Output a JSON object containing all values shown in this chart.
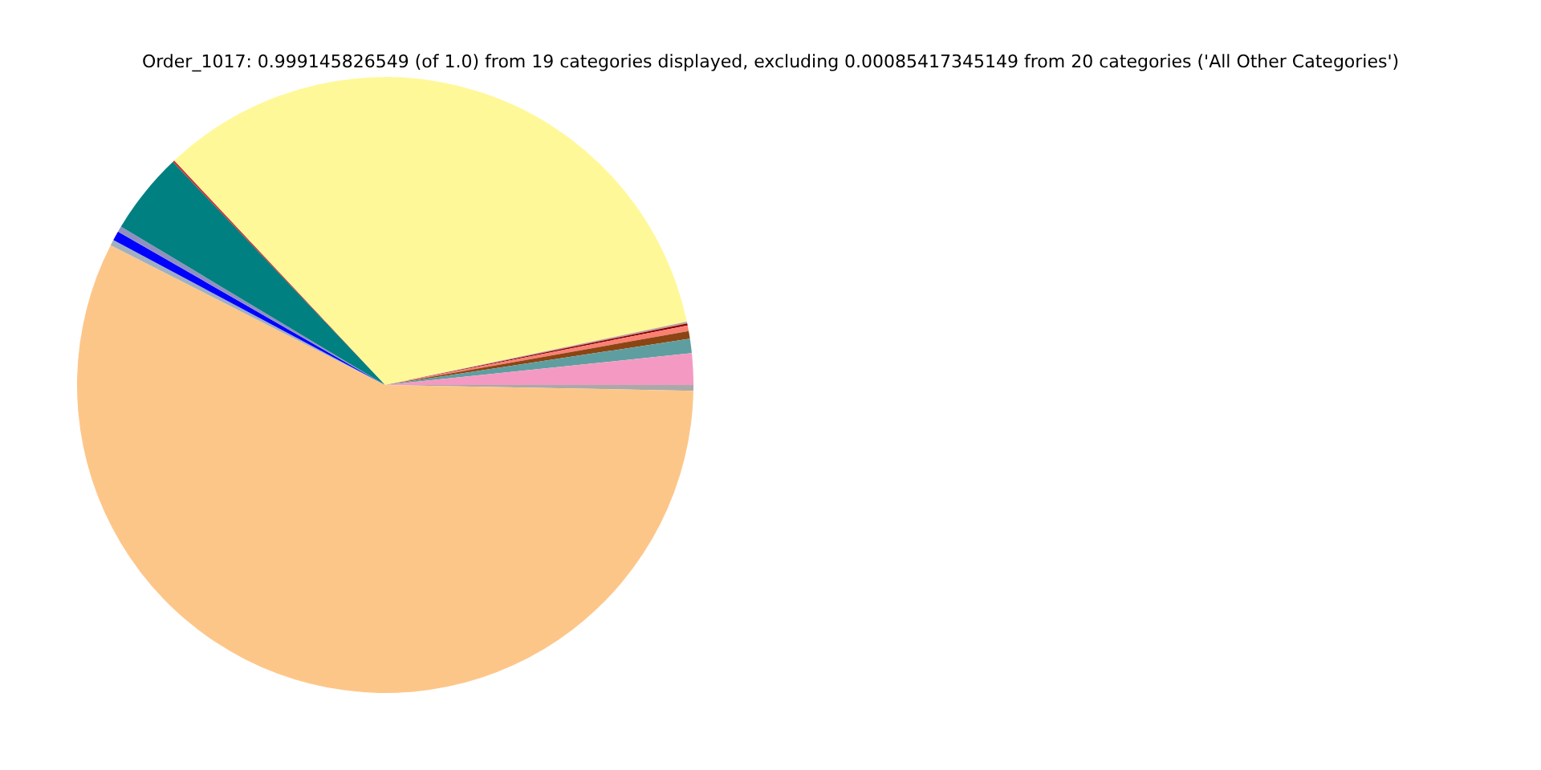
{
  "chart_data": {
    "type": "pie",
    "title": "Order_1017: 0.999145826549 (of 1.0) from 19 categories displayed, excluding 0.00085417345149 from 20 categories ('All Other Categories')",
    "categories": [
      null,
      null,
      null,
      null,
      null,
      null,
      null,
      null,
      null,
      null,
      null,
      null,
      null,
      null
    ],
    "values": [
      0.3,
      57.2,
      0.3,
      0.5,
      0.3,
      4.3,
      0.1,
      33.7,
      0.1,
      0.1,
      0.3,
      0.4,
      0.75,
      1.65
    ],
    "colors": [
      "#a9a9a9",
      "#fdc689",
      "#a0b0c0",
      "#0000ff",
      "#9090c0",
      "#008080",
      "#cc3333",
      "#fff899",
      "#c0a0a0",
      "#8b0000",
      "#fa8072",
      "#8b4513",
      "#5f9ea0",
      "#f49ac2"
    ],
    "legend": false
  }
}
